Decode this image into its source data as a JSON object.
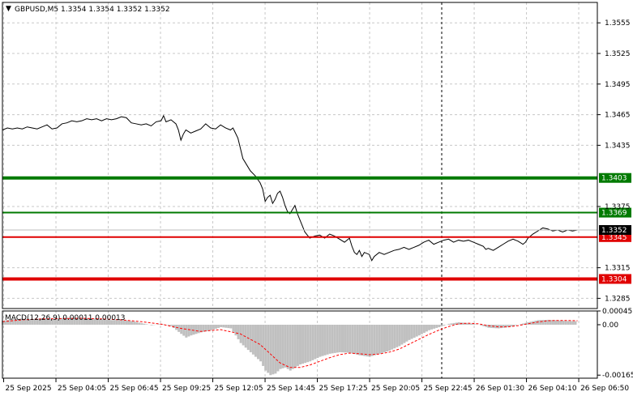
{
  "chart_data": [
    {
      "type": "line",
      "title": "GBPUSD,M5  1.3354 1.3354 1.3352 1.3352",
      "symbol": "GBPUSD,M5",
      "ohlc": [
        1.3354,
        1.3354,
        1.3352,
        1.3352
      ],
      "ylim": [
        1.3275,
        1.3575
      ],
      "y_ticks": [
        "1.3555",
        "1.3525",
        "1.3495",
        "1.3465",
        "1.3435",
        "1.3375",
        "1.3315",
        "1.3285"
      ],
      "current_price_label": "1.3352",
      "levels": [
        {
          "label": "1.3403",
          "value": 1.3403,
          "color": "#007a00",
          "weight": "thick"
        },
        {
          "label": "1.3369",
          "value": 1.3369,
          "color": "#007a00",
          "weight": "thin"
        },
        {
          "label": "1.3345",
          "value": 1.3345,
          "color": "#e00000",
          "weight": "thin"
        },
        {
          "label": "1.3304",
          "value": 1.3304,
          "color": "#e00000",
          "weight": "thick"
        }
      ],
      "x_ticks": [
        "25 Sep 2025",
        "25 Sep 04:05",
        "25 Sep 06:45",
        "25 Sep 09:25",
        "25 Sep 12:05",
        "25 Sep 14:45",
        "25 Sep 17:25",
        "25 Sep 20:05",
        "25 Sep 22:45",
        "26 Sep 01:30",
        "26 Sep 04:10",
        "26 Sep 06:50"
      ],
      "series": [
        {
          "values": [
            [
              0,
              1.345
            ],
            [
              2,
              1.3452
            ],
            [
              4,
              1.3451
            ],
            [
              6,
              1.3452
            ],
            [
              8,
              1.3451
            ],
            [
              10,
              1.3453
            ],
            [
              12,
              1.3452
            ],
            [
              14,
              1.3451
            ],
            [
              16,
              1.3453
            ],
            [
              18,
              1.3455
            ],
            [
              20,
              1.3451
            ],
            [
              22,
              1.3452
            ],
            [
              24,
              1.3456
            ],
            [
              26,
              1.3457
            ],
            [
              28,
              1.3459
            ],
            [
              30,
              1.3458
            ],
            [
              32,
              1.3459
            ],
            [
              34,
              1.3461
            ],
            [
              36,
              1.346
            ],
            [
              38,
              1.3461
            ],
            [
              40,
              1.3459
            ],
            [
              42,
              1.3461
            ],
            [
              44,
              1.346
            ],
            [
              46,
              1.3461
            ],
            [
              48,
              1.3463
            ],
            [
              50,
              1.3462
            ],
            [
              52,
              1.3457
            ],
            [
              54,
              1.3456
            ],
            [
              56,
              1.3455
            ],
            [
              58,
              1.3456
            ],
            [
              60,
              1.3454
            ],
            [
              62,
              1.3458
            ],
            [
              64,
              1.3459
            ],
            [
              65,
              1.3464
            ],
            [
              66,
              1.3458
            ],
            [
              68,
              1.346
            ],
            [
              70,
              1.3456
            ],
            [
              71,
              1.345
            ],
            [
              72,
              1.344
            ],
            [
              73,
              1.3446
            ],
            [
              74,
              1.345
            ],
            [
              76,
              1.3447
            ],
            [
              78,
              1.3449
            ],
            [
              80,
              1.3451
            ],
            [
              82,
              1.3456
            ],
            [
              84,
              1.3452
            ],
            [
              86,
              1.3451
            ],
            [
              88,
              1.3455
            ],
            [
              90,
              1.3452
            ],
            [
              92,
              1.345
            ],
            [
              93,
              1.3452
            ],
            [
              94,
              1.3447
            ],
            [
              95,
              1.3442
            ],
            [
              96,
              1.3432
            ],
            [
              97,
              1.3422
            ],
            [
              98,
              1.3418
            ],
            [
              100,
              1.341
            ],
            [
              102,
              1.3405
            ],
            [
              104,
              1.3398
            ],
            [
              105,
              1.3392
            ],
            [
              106,
              1.338
            ],
            [
              107,
              1.3384
            ],
            [
              108,
              1.3386
            ],
            [
              109,
              1.3378
            ],
            [
              110,
              1.3382
            ],
            [
              111,
              1.3388
            ],
            [
              112,
              1.339
            ],
            [
              113,
              1.3384
            ],
            [
              114,
              1.3376
            ],
            [
              115,
              1.337
            ],
            [
              116,
              1.3368
            ],
            [
              117,
              1.3372
            ],
            [
              118,
              1.3376
            ],
            [
              119,
              1.3368
            ],
            [
              120,
              1.3362
            ],
            [
              121,
              1.3356
            ],
            [
              122,
              1.335
            ],
            [
              123,
              1.3347
            ],
            [
              124,
              1.3344
            ],
            [
              126,
              1.3346
            ],
            [
              128,
              1.3347
            ],
            [
              130,
              1.3344
            ],
            [
              132,
              1.3348
            ],
            [
              134,
              1.3346
            ],
            [
              136,
              1.3343
            ],
            [
              138,
              1.334
            ],
            [
              140,
              1.3344
            ],
            [
              141,
              1.3336
            ],
            [
              142,
              1.333
            ],
            [
              143,
              1.3328
            ],
            [
              144,
              1.3332
            ],
            [
              145,
              1.3326
            ],
            [
              146,
              1.333
            ],
            [
              148,
              1.3328
            ],
            [
              149,
              1.3322
            ],
            [
              150,
              1.3326
            ],
            [
              152,
              1.333
            ],
            [
              154,
              1.3328
            ],
            [
              156,
              1.333
            ],
            [
              158,
              1.3332
            ],
            [
              160,
              1.3333
            ],
            [
              162,
              1.3335
            ],
            [
              164,
              1.3333
            ],
            [
              166,
              1.3335
            ],
            [
              168,
              1.3337
            ],
            [
              170,
              1.334
            ],
            [
              172,
              1.3342
            ],
            [
              174,
              1.3338
            ],
            [
              176,
              1.334
            ],
            [
              178,
              1.3342
            ],
            [
              180,
              1.3343
            ],
            [
              182,
              1.334
            ],
            [
              184,
              1.3342
            ],
            [
              186,
              1.3341
            ],
            [
              188,
              1.3342
            ],
            [
              190,
              1.334
            ],
            [
              192,
              1.3338
            ],
            [
              194,
              1.3336
            ],
            [
              195,
              1.3333
            ],
            [
              196,
              1.3334
            ],
            [
              198,
              1.3332
            ],
            [
              200,
              1.3335
            ],
            [
              202,
              1.3338
            ],
            [
              204,
              1.3341
            ],
            [
              206,
              1.3343
            ],
            [
              208,
              1.3341
            ],
            [
              210,
              1.3338
            ],
            [
              211,
              1.334
            ],
            [
              212,
              1.3344
            ],
            [
              214,
              1.3348
            ],
            [
              216,
              1.3351
            ],
            [
              218,
              1.3354
            ],
            [
              220,
              1.3353
            ],
            [
              222,
              1.3351
            ],
            [
              224,
              1.3352
            ],
            [
              226,
              1.335
            ],
            [
              228,
              1.3352
            ],
            [
              230,
              1.3351
            ],
            [
              232,
              1.3352
            ]
          ]
        }
      ]
    },
    {
      "type": "bar",
      "title": "MACD(12,26,9) 0.00011 0.00013",
      "ylim": [
        -0.00175,
        0.00045
      ],
      "y_ticks": [
        "0.00045",
        "0.00",
        "-0.00165"
      ],
      "series": [
        {
          "name": "MACD",
          "kind": "histogram",
          "color": "#c0c0c0",
          "values": [
            [
              0,
              0.00013
            ],
            [
              4,
              0.00018
            ],
            [
              8,
              0.0002
            ],
            [
              12,
              0.00019
            ],
            [
              16,
              0.00021
            ],
            [
              20,
              0.00018
            ],
            [
              24,
              0.00022
            ],
            [
              28,
              0.00023
            ],
            [
              32,
              0.00022
            ],
            [
              36,
              0.00021
            ],
            [
              40,
              0.00018
            ],
            [
              44,
              0.00015
            ],
            [
              48,
              0.00016
            ],
            [
              52,
              0.00012
            ],
            [
              56,
              5e-05
            ],
            [
              60,
              -2e-05
            ],
            [
              64,
              3e-05
            ],
            [
              68,
              -4e-05
            ],
            [
              72,
              -0.0003
            ],
            [
              74,
              -0.00042
            ],
            [
              76,
              -0.00035
            ],
            [
              80,
              -0.00025
            ],
            [
              84,
              -0.00018
            ],
            [
              88,
              -8e-05
            ],
            [
              92,
              -0.00012
            ],
            [
              94,
              -0.00035
            ],
            [
              96,
              -0.0006
            ],
            [
              100,
              -0.0009
            ],
            [
              104,
              -0.0012
            ],
            [
              106,
              -0.0015
            ],
            [
              108,
              -0.00165
            ],
            [
              110,
              -0.0016
            ],
            [
              112,
              -0.00145
            ],
            [
              114,
              -0.0014
            ],
            [
              116,
              -0.0015
            ],
            [
              118,
              -0.0014
            ],
            [
              120,
              -0.0013
            ],
            [
              124,
              -0.0012
            ],
            [
              128,
              -0.00105
            ],
            [
              132,
              -0.00095
            ],
            [
              136,
              -0.0009
            ],
            [
              140,
              -0.00092
            ],
            [
              144,
              -0.001
            ],
            [
              148,
              -0.00105
            ],
            [
              152,
              -0.00095
            ],
            [
              156,
              -0.00085
            ],
            [
              160,
              -0.0007
            ],
            [
              164,
              -0.0005
            ],
            [
              168,
              -0.00035
            ],
            [
              172,
              -0.00018
            ],
            [
              176,
              -8e-05
            ],
            [
              180,
              3e-05
            ],
            [
              184,
              8e-05
            ],
            [
              188,
              5e-05
            ],
            [
              192,
              0.0
            ],
            [
              196,
              -0.0001
            ],
            [
              200,
              -0.00012
            ],
            [
              204,
              -8e-05
            ],
            [
              208,
              0.0
            ],
            [
              212,
              8e-05
            ],
            [
              216,
              0.00015
            ],
            [
              220,
              0.00016
            ],
            [
              224,
              0.00014
            ],
            [
              228,
              0.00012
            ],
            [
              232,
              0.00011
            ]
          ]
        },
        {
          "name": "Signal",
          "kind": "line",
          "color": "#ff0000",
          "values": [
            [
              0,
              0.0001
            ],
            [
              8,
              0.00016
            ],
            [
              16,
              0.00019
            ],
            [
              24,
              0.0002
            ],
            [
              32,
              0.00021
            ],
            [
              40,
              0.00019
            ],
            [
              48,
              0.00016
            ],
            [
              56,
              0.0001
            ],
            [
              64,
              2e-05
            ],
            [
              72,
              -0.00012
            ],
            [
              80,
              -0.00022
            ],
            [
              88,
              -0.00016
            ],
            [
              96,
              -0.0003
            ],
            [
              104,
              -0.00065
            ],
            [
              108,
              -0.00095
            ],
            [
              112,
              -0.00125
            ],
            [
              116,
              -0.0014
            ],
            [
              120,
              -0.0014
            ],
            [
              124,
              -0.00132
            ],
            [
              128,
              -0.0012
            ],
            [
              132,
              -0.00108
            ],
            [
              136,
              -0.00098
            ],
            [
              140,
              -0.00093
            ],
            [
              144,
              -0.00095
            ],
            [
              148,
              -0.00098
            ],
            [
              152,
              -0.00096
            ],
            [
              156,
              -0.0009
            ],
            [
              160,
              -0.0008
            ],
            [
              164,
              -0.00064
            ],
            [
              168,
              -0.00048
            ],
            [
              172,
              -0.00032
            ],
            [
              176,
              -0.00018
            ],
            [
              180,
              -6e-05
            ],
            [
              184,
              3e-05
            ],
            [
              188,
              5e-05
            ],
            [
              192,
              3e-05
            ],
            [
              196,
              -3e-05
            ],
            [
              200,
              -7e-05
            ],
            [
              204,
              -7e-05
            ],
            [
              208,
              -3e-05
            ],
            [
              212,
              3e-05
            ],
            [
              216,
              9e-05
            ],
            [
              220,
              0.00013
            ],
            [
              224,
              0.00014
            ],
            [
              228,
              0.00014
            ],
            [
              232,
              0.00013
            ]
          ]
        }
      ]
    }
  ],
  "style": {
    "grid_color": "#c8c8c8",
    "price_line_color": "#000000",
    "current_price_bg": "#000000",
    "current_price_fg": "#ffffff"
  }
}
